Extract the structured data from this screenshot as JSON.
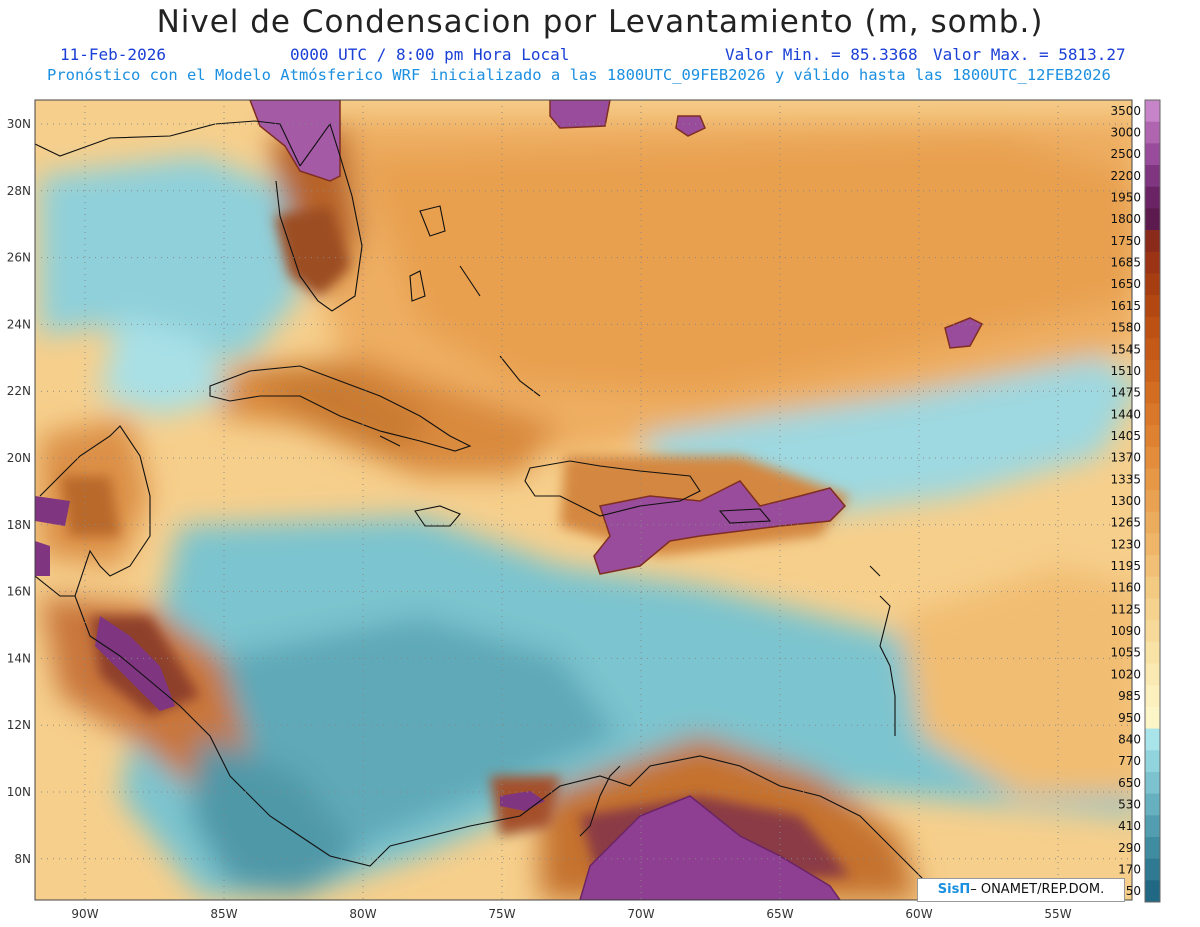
{
  "title": "Nivel de Condensacion por Levantamiento (m, somb.)",
  "date": "11-Feb-2026",
  "time": "0000 UTC / 8:00 pm Hora Local",
  "value_min": "Valor Min. = 85.3368",
  "value_max": "Valor Max. = 5813.27",
  "forecast_line": "Pronóstico con el Modelo Atmósferico WRF inicializado a las 1800UTC_09FEB2026 y válido hasta las  1800UTC_12FEB2026",
  "credit_logo": "SisΠ",
  "credit_text": " ONAMET/REP.DOM.",
  "lat_labels": [
    "30N",
    "28N",
    "26N",
    "24N",
    "22N",
    "20N",
    "18N",
    "16N",
    "14N",
    "12N",
    "10N",
    "8N"
  ],
  "lon_labels": [
    "90W",
    "85W",
    "80W",
    "75W",
    "70W",
    "65W",
    "60W",
    "55W"
  ],
  "colorbar": {
    "labels": [
      "3500",
      "3000",
      "2500",
      "2200",
      "1950",
      "1800",
      "1750",
      "1685",
      "1650",
      "1615",
      "1580",
      "1545",
      "1510",
      "1475",
      "1440",
      "1405",
      "1370",
      "1335",
      "1300",
      "1265",
      "1230",
      "1195",
      "1160",
      "1125",
      "1090",
      "1055",
      "1020",
      "985",
      "950",
      "840",
      "770",
      "650",
      "530",
      "410",
      "290",
      "170",
      "50"
    ],
    "colors": [
      "#c884c8",
      "#b065b0",
      "#9a4c9c",
      "#7f3580",
      "#6a2466",
      "#5c1a4e",
      "#8a2a1a",
      "#9a3414",
      "#a63e12",
      "#b34712",
      "#bd5114",
      "#c55a18",
      "#cc631c",
      "#d36d22",
      "#d9772a",
      "#de8232",
      "#e28c3c",
      "#e69846",
      "#e9a252",
      "#ecac5e",
      "#efb66a",
      "#f1c076",
      "#f3ca82",
      "#f5d28e",
      "#f7da9a",
      "#f9e2a6",
      "#fae9b2",
      "#fbf0be",
      "#fcf5c8",
      "#a8e4ea",
      "#92d4de",
      "#7cc2cf",
      "#67b0bf",
      "#529eb0",
      "#3f8ca1",
      "#2f7a92",
      "#206883"
    ]
  }
}
